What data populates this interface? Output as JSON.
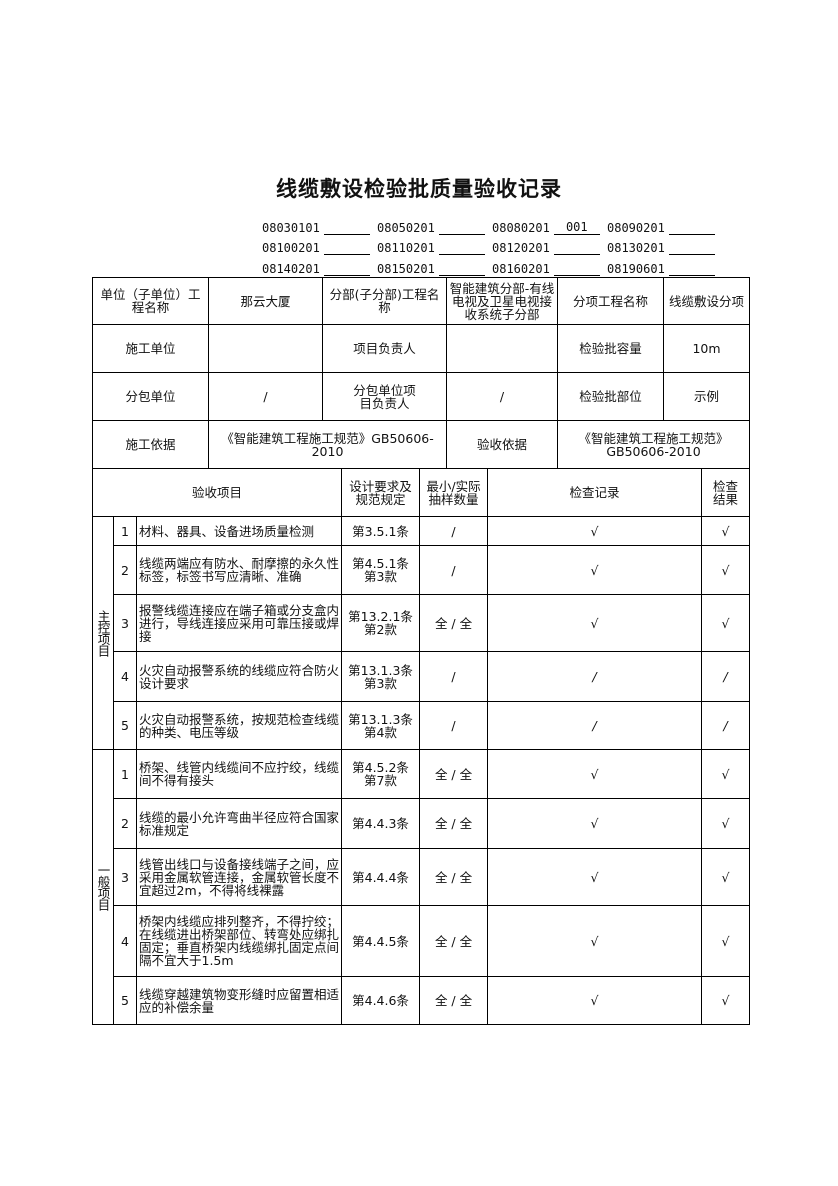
{
  "title": "线缆敷设检验批质量验收记录",
  "codes": [
    [
      {
        "code": "08030101",
        "value": ""
      },
      {
        "code": "08050201",
        "value": ""
      },
      {
        "code": "08080201",
        "value": "001"
      },
      {
        "code": "08090201",
        "value": ""
      }
    ],
    [
      {
        "code": "08100201",
        "value": ""
      },
      {
        "code": "08110201",
        "value": ""
      },
      {
        "code": "08120201",
        "value": ""
      },
      {
        "code": "08130201",
        "value": ""
      }
    ],
    [
      {
        "code": "08140201",
        "value": ""
      },
      {
        "code": "08150201",
        "value": ""
      },
      {
        "code": "08160201",
        "value": ""
      },
      {
        "code": "08190601",
        "value": ""
      }
    ]
  ],
  "info": {
    "unit_label": "单位（子单位）工程名称",
    "unit_value": "那云大厦",
    "division_label": "分部(子分部)工程名称",
    "division_value": "智能建筑分部-有线电视及卫星电视接收系统子分部",
    "subitem_label": "分项工程名称",
    "subitem_value": "线缆敷设分项",
    "contractor_label": "施工单位",
    "contractor_value": "",
    "manager_label": "项目负责人",
    "manager_value": "",
    "capacity_label": "检验批容量",
    "capacity_value": "10m",
    "subcontractor_label": "分包单位",
    "subcontractor_value": "/",
    "sub_manager_label": "分包单位项目负责人",
    "sub_manager_value": "/",
    "location_label": "检验批部位",
    "location_value": "示例",
    "construction_basis_label": "施工依据",
    "construction_basis_value": "《智能建筑工程施工规范》GB50606-2010",
    "acceptance_basis_label": "验收依据",
    "acceptance_basis_value": "《智能建筑工程施工规范》GB50606-2010"
  },
  "headers": {
    "item": "验收项目",
    "design": "设计要求及规范规定",
    "sample": "最小/实际抽样数量",
    "record": "检查记录",
    "result": "检查结果"
  },
  "main_control": {
    "label": "主控项目",
    "rows": [
      {
        "no": "1",
        "item": "材料、器具、设备进场质量检测",
        "design": "第3.5.1条",
        "sample": "/",
        "record": "√",
        "result": "√"
      },
      {
        "no": "2",
        "item": "线缆两端应有防水、耐摩擦的永久性标签，标签书写应清晰、准确",
        "design": "第4.5.1条第3款",
        "sample": "/",
        "record": "√",
        "result": "√"
      },
      {
        "no": "3",
        "item": "报警线缆连接应在端子箱或分支盒内进行，导线连接应采用可靠压接或焊接",
        "design": "第13.2.1条第2款",
        "sample": "全 / 全",
        "record": "√",
        "result": "√"
      },
      {
        "no": "4",
        "item": "火灾自动报警系统的线缆应符合防火设计要求",
        "design": "第13.1.3条第3款",
        "sample": "/",
        "record": "/",
        "result": "/"
      },
      {
        "no": "5",
        "item": "火灾自动报警系统，按规范检查线缆的种类、电压等级",
        "design": "第13.1.3条第4款",
        "sample": "/",
        "record": "/",
        "result": "/"
      }
    ]
  },
  "general": {
    "label": "一般项目",
    "rows": [
      {
        "no": "1",
        "item": "桥架、线管内线缆间不应拧绞，线缆间不得有接头",
        "design": "第4.5.2条第7款",
        "sample": "全 / 全",
        "record": "√",
        "result": "√"
      },
      {
        "no": "2",
        "item": "线缆的最小允许弯曲半径应符合国家标准规定",
        "design": "第4.4.3条",
        "sample": "全 / 全",
        "record": "√",
        "result": "√"
      },
      {
        "no": "3",
        "item": "线管出线口与设备接线端子之间，应采用金属软管连接，金属软管长度不宜超过2m，不得将线裸露",
        "design": "第4.4.4条",
        "sample": "全 / 全",
        "record": "√",
        "result": "√"
      },
      {
        "no": "4",
        "item": "桥架内线缆应排列整齐，不得拧绞；在线缆进出桥架部位、转弯处应绑扎固定；垂直桥架内线缆绑扎固定点间隔不宜大于1.5m",
        "design": "第4.4.5条",
        "sample": "全 / 全",
        "record": "√",
        "result": "√"
      },
      {
        "no": "5",
        "item": "线缆穿越建筑物变形缝时应留置相适应的补偿余量",
        "design": "第4.4.6条",
        "sample": "全 / 全",
        "record": "√",
        "result": "√"
      }
    ]
  }
}
